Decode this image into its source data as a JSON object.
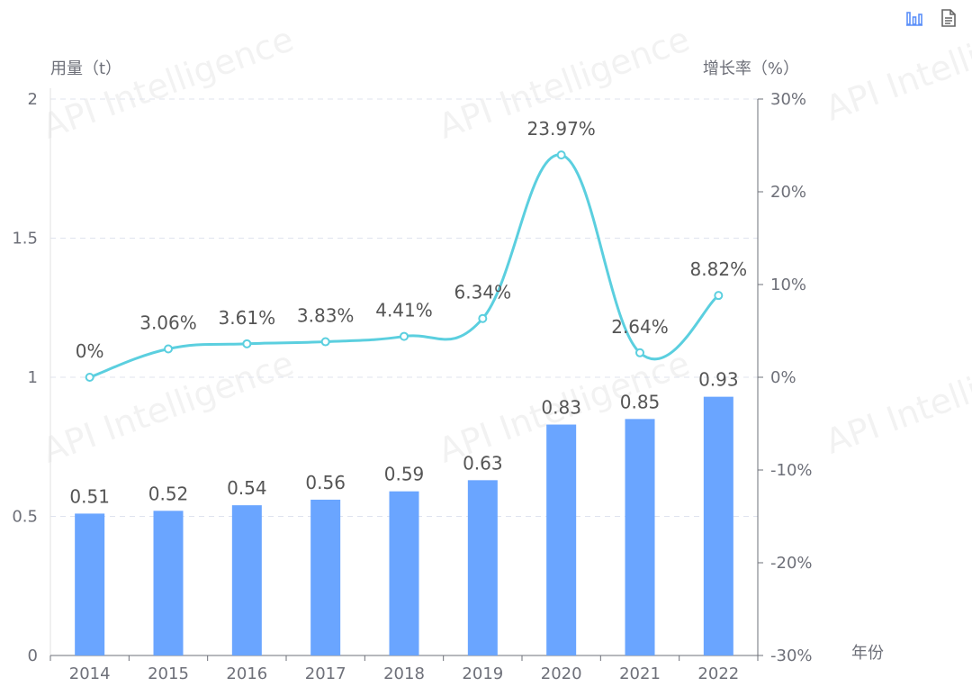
{
  "toolbar": {
    "bar_icon": "bar-chart-icon",
    "data_view_icon": "data-view-icon",
    "accent": "#5b8ff9"
  },
  "watermark": "API Intelligence",
  "chart_data": {
    "type": "bar",
    "categories": [
      "2014",
      "2015",
      "2016",
      "2017",
      "2018",
      "2019",
      "2020",
      "2021",
      "2022"
    ],
    "series": [
      {
        "type": "bar",
        "axis": "left",
        "values": [
          0.51,
          0.52,
          0.54,
          0.56,
          0.59,
          0.63,
          0.83,
          0.85,
          0.93
        ],
        "labels": [
          "0.51",
          "0.52",
          "0.54",
          "0.56",
          "0.59",
          "0.63",
          "0.83",
          "0.85",
          "0.93"
        ],
        "color": "#6aa5ff"
      },
      {
        "type": "line",
        "axis": "right",
        "smooth": true,
        "values": [
          0,
          3.06,
          3.61,
          3.83,
          4.41,
          6.34,
          23.97,
          2.64,
          8.82
        ],
        "labels": [
          "0%",
          "3.06%",
          "3.61%",
          "3.83%",
          "4.41%",
          "6.34%",
          "23.97%",
          "2.64%",
          "8.82%"
        ],
        "color": "#5bcfdf"
      }
    ],
    "y_left": {
      "name": "用量（t）",
      "min": 0,
      "max": 2,
      "ticks": [
        0,
        0.5,
        1,
        1.5,
        2
      ],
      "tick_labels": [
        "0",
        "0.5",
        "1",
        "1.5",
        "2"
      ]
    },
    "y_right": {
      "name": "增长率（%）",
      "min": -30,
      "max": 30,
      "ticks": [
        -30,
        -20,
        -10,
        0,
        10,
        20,
        30
      ],
      "tick_labels": [
        "-30%",
        "-20%",
        "-10%",
        "0%",
        "10%",
        "20%",
        "30%"
      ]
    },
    "x_axis": {
      "name": "年份"
    },
    "grid": true,
    "legend": "none"
  }
}
